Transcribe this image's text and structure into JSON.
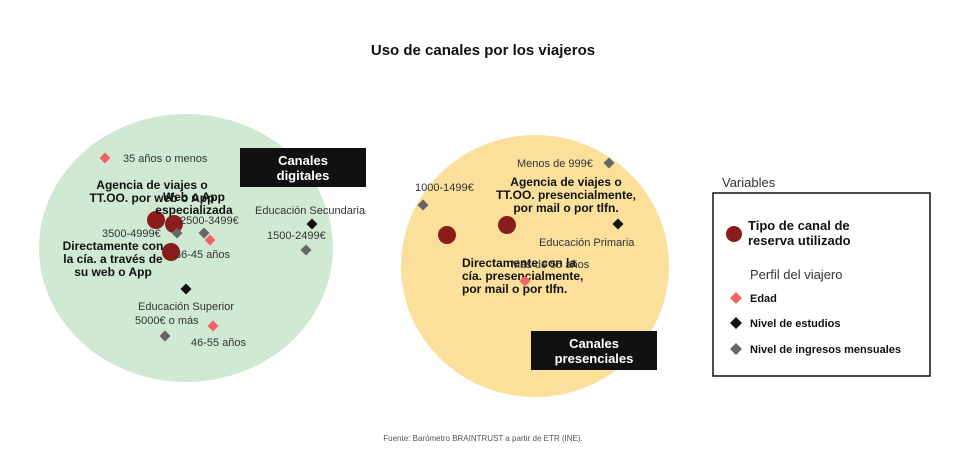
{
  "chart_data": {
    "type": "scatter",
    "title": "Uso de canales por los viajeros",
    "source": "Fuente: Barómetro BRAINTRUST a partir de ETR (INE).",
    "groups": [
      {
        "id": "digital",
        "label": [
          "Canales",
          "digitales"
        ],
        "color": "#cfe9d2"
      },
      {
        "id": "presencial",
        "label": [
          "Canales",
          "presenciales"
        ],
        "color": "#fbe09c"
      }
    ],
    "categories": {
      "canal": {
        "label": "Tipo de canal de reserva utilizado",
        "color": "#8b1c1c",
        "shape": "circle"
      },
      "edad": {
        "label": "Edad",
        "color": "#f0626a",
        "shape": "diamond"
      },
      "estudios": {
        "label": "Nivel de estudios",
        "color": "#111111",
        "shape": "diamond"
      },
      "ingresos": {
        "label": "Nivel de ingresos mensuales",
        "color": "#666666",
        "shape": "diamond"
      }
    },
    "points": [
      {
        "cat": "canal",
        "x": -0.7,
        "y": 0.38,
        "label": [
          "Agencia de viajes o",
          "TT.OO. por web o App"
        ]
      },
      {
        "cat": "canal",
        "x": -0.64,
        "y": 0.34,
        "label": [
          "Web o App",
          "especializada"
        ]
      },
      {
        "cat": "canal",
        "x": -0.65,
        "y": 0.06,
        "label": [
          "Directamente con",
          "la cía. a través de",
          "su web o App"
        ]
      },
      {
        "cat": "canal",
        "x": 0.47,
        "y": 0.33,
        "label": [
          "Agencia de viajes o",
          "TT.OO. presencialmente,",
          "por mail o por tlfn."
        ]
      },
      {
        "cat": "canal",
        "x": 0.27,
        "y": 0.23,
        "label": [
          "Directamente con la",
          "cía. presencialmente,",
          "por mail o por tlfn."
        ]
      },
      {
        "cat": "edad",
        "x": -0.87,
        "y": 1.0,
        "label": "35 años o menos"
      },
      {
        "cat": "edad",
        "x": -0.52,
        "y": 0.18,
        "label": "36-45 años"
      },
      {
        "cat": "edad",
        "x": -0.51,
        "y": -0.68,
        "label": "46-55 años"
      },
      {
        "cat": "edad",
        "x": 0.53,
        "y": -0.23,
        "label": "Más de 55 años"
      },
      {
        "cat": "estudios",
        "x": -0.18,
        "y": 0.34,
        "label": "Educación Secundaria"
      },
      {
        "cat": "estudios",
        "x": -0.6,
        "y": -0.31,
        "label": "Educación Superior"
      },
      {
        "cat": "estudios",
        "x": 0.84,
        "y": 0.34,
        "label": "Educación Primaria"
      },
      {
        "cat": "ingresos",
        "x": 0.81,
        "y": 0.95,
        "label": "Menos de 999€"
      },
      {
        "cat": "ingresos",
        "x": 0.19,
        "y": 0.53,
        "label": "1000-1499€"
      },
      {
        "cat": "ingresos",
        "x": -0.54,
        "y": 0.25,
        "label": "2500-3499€"
      },
      {
        "cat": "ingresos",
        "x": -0.63,
        "y": 0.25,
        "label": "3500-4999€"
      },
      {
        "cat": "ingresos",
        "x": -0.2,
        "y": 0.08,
        "label": "1500-2499€"
      },
      {
        "cat": "ingresos",
        "x": -0.67,
        "y": -0.78,
        "label": "5000€ o más"
      }
    ],
    "legend": {
      "title": "Variables",
      "subtitle": "Perfil del viajero"
    }
  }
}
